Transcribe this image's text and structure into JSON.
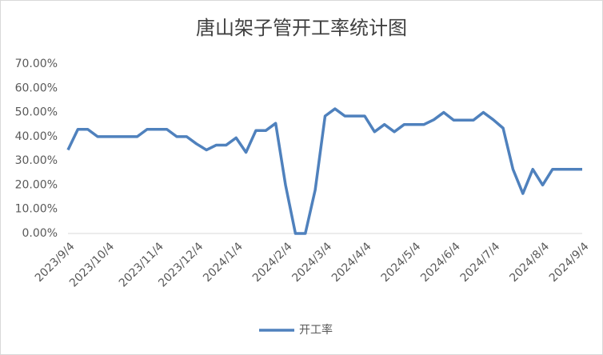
{
  "chart_data": {
    "type": "line",
    "title": "唐山架子管开工率统计图",
    "categories": [
      "2023/9/4",
      null,
      null,
      null,
      "2023/10/4",
      null,
      null,
      null,
      null,
      "2023/11/4",
      null,
      null,
      null,
      "2023/12/4",
      null,
      null,
      null,
      "2024/1/4",
      null,
      null,
      null,
      null,
      "2024/2/4",
      null,
      null,
      null,
      "2024/3/4",
      null,
      null,
      null,
      "2024/4/4",
      null,
      null,
      null,
      null,
      "2024/5/4",
      null,
      null,
      null,
      "2024/6/4",
      null,
      null,
      null,
      "2024/7/4",
      null,
      null,
      null,
      null,
      "2024/8/4",
      null,
      null,
      null,
      "2024/9/4"
    ],
    "series": [
      {
        "name": "开工率",
        "color": "#4f81bd",
        "values": [
          34.5,
          43,
          43,
          40,
          40,
          40,
          40,
          40,
          43,
          43,
          43,
          40,
          40,
          37,
          34.5,
          36.5,
          36.5,
          39.5,
          33.5,
          42.5,
          42.5,
          45.5,
          20,
          0,
          0,
          18,
          48.5,
          51.5,
          48.5,
          48.5,
          48.5,
          42,
          45,
          42,
          45,
          45,
          45,
          47,
          50,
          46.8,
          46.8,
          46.8,
          50,
          47,
          43.5,
          26.5,
          16.5,
          26.5,
          20,
          26.5,
          26.5,
          26.5,
          26.5
        ]
      }
    ],
    "ylim": [
      0,
      70
    ],
    "yticks": [
      {
        "value": 0,
        "label": "0.00%"
      },
      {
        "value": 10,
        "label": "10.00%"
      },
      {
        "value": 20,
        "label": "20.00%"
      },
      {
        "value": 30,
        "label": "30.00%"
      },
      {
        "value": 40,
        "label": "40.00%"
      },
      {
        "value": 50,
        "label": "50.00%"
      },
      {
        "value": 60,
        "label": "60.00%"
      },
      {
        "value": 70,
        "label": "70.00%"
      }
    ],
    "legend": "bottom"
  }
}
